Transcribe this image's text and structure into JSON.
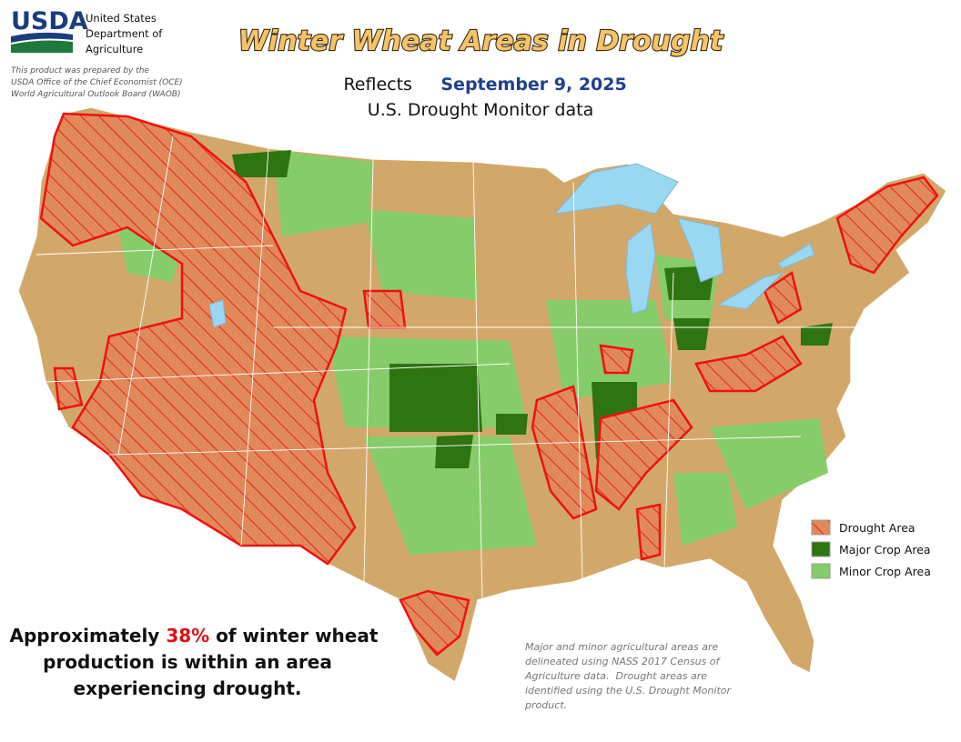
{
  "header": {
    "logo": "USDA",
    "agency": [
      "United States",
      "Department of",
      "Agriculture"
    ],
    "note": [
      "This product was prepared by the",
      "USDA Office of the Chief Economist (OCE)",
      "World Agricultural Outlook Board (WAOB)"
    ]
  },
  "title": "Winter Wheat Areas in Drought",
  "subtitle": {
    "prefix": "Reflects",
    "date": "September 9, 2025",
    "source": "U.S. Drought Monitor data"
  },
  "legend": [
    {
      "label": "Drought Area"
    },
    {
      "label": "Major Crop Area"
    },
    {
      "label": "Minor Crop Area"
    }
  ],
  "summary": {
    "before": "Approximately ",
    "share": "38%",
    "after": " of winter wheat",
    "lines": [
      "production is within an area",
      "experiencing drought."
    ]
  },
  "footnote": [
    "Major and minor agricultural areas are",
    "delineated using NASS 2017 Census of",
    "Agriculture data.  Drought areas are",
    "identified using the U.S. Drought Monitor",
    "product."
  ]
}
